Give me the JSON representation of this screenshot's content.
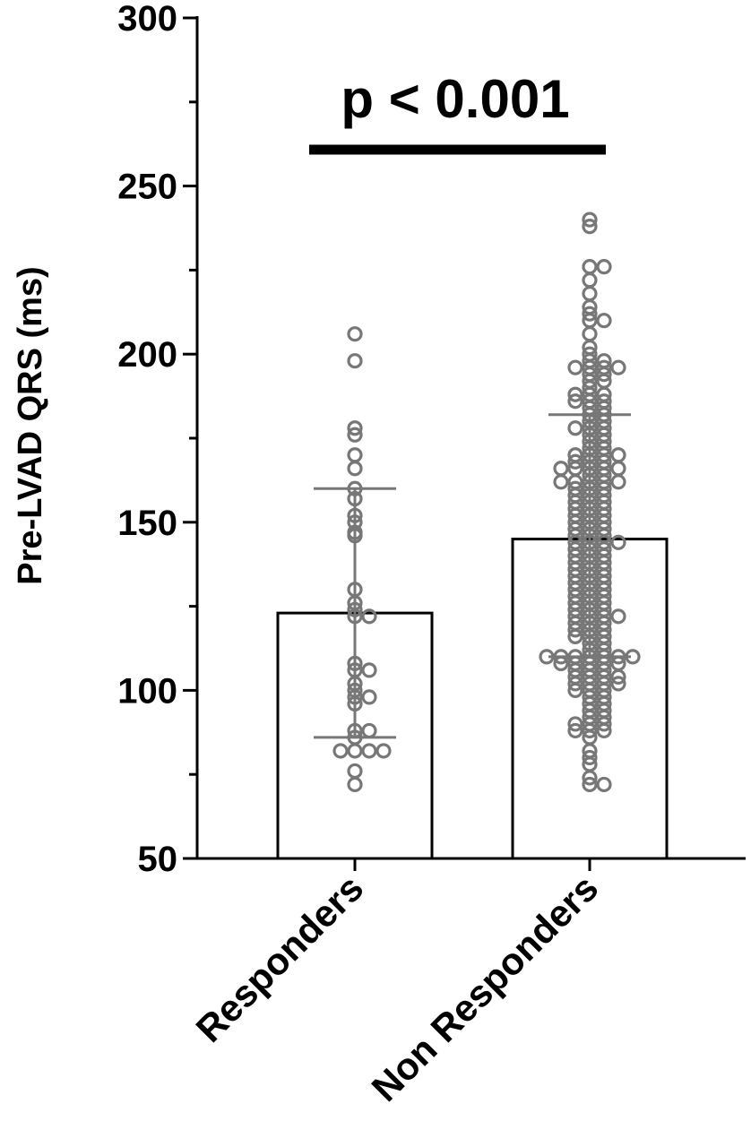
{
  "chart_data": {
    "type": "bar",
    "ylabel": "Pre-LVAD QRS (ms)",
    "ylim": [
      50,
      300
    ],
    "yticks": [
      50,
      100,
      150,
      200,
      250,
      300
    ],
    "categories": [
      "Responders",
      "Non Responders"
    ],
    "bar_values": [
      123,
      145
    ],
    "error_bars": [
      {
        "median": 123,
        "low": 86,
        "high": 160
      },
      {
        "median": 145,
        "low": 110,
        "high": 182
      }
    ],
    "annotation": "p < 0.001",
    "marker_color": "#777777",
    "points": [
      [
        206,
        198,
        178,
        176,
        170,
        166,
        160,
        157,
        152,
        150,
        147,
        146,
        130,
        126,
        124,
        122,
        122,
        108,
        106,
        106,
        102,
        100,
        98,
        98,
        96,
        88,
        88,
        86,
        82,
        82,
        82,
        82,
        76,
        72
      ],
      [
        240,
        238,
        226,
        226,
        222,
        218,
        214,
        212,
        210,
        210,
        206,
        202,
        200,
        198,
        198,
        196,
        196,
        196,
        196,
        194,
        194,
        192,
        192,
        190,
        188,
        188,
        188,
        186,
        186,
        186,
        184,
        184,
        182,
        182,
        180,
        180,
        178,
        178,
        178,
        176,
        176,
        174,
        174,
        172,
        172,
        170,
        170,
        170,
        170,
        168,
        168,
        168,
        166,
        166,
        166,
        166,
        166,
        164,
        164,
        162,
        162,
        162,
        162,
        162,
        160,
        160,
        160,
        158,
        158,
        158,
        156,
        156,
        156,
        154,
        154,
        154,
        152,
        152,
        152,
        150,
        150,
        150,
        148,
        148,
        148,
        146,
        146,
        146,
        144,
        144,
        144,
        144,
        142,
        142,
        142,
        140,
        140,
        140,
        138,
        138,
        138,
        136,
        136,
        136,
        134,
        134,
        134,
        132,
        132,
        132,
        130,
        130,
        130,
        128,
        128,
        128,
        126,
        126,
        126,
        124,
        124,
        124,
        122,
        122,
        122,
        122,
        120,
        120,
        120,
        118,
        118,
        118,
        116,
        116,
        116,
        114,
        114,
        112,
        112,
        110,
        110,
        110,
        110,
        110,
        110,
        110,
        108,
        108,
        108,
        108,
        108,
        106,
        106,
        106,
        104,
        104,
        104,
        104,
        102,
        102,
        102,
        102,
        100,
        100,
        100,
        98,
        98,
        96,
        96,
        94,
        94,
        92,
        92,
        90,
        90,
        90,
        88,
        88,
        88,
        86,
        82,
        80,
        78,
        74,
        72,
        72
      ]
    ]
  }
}
